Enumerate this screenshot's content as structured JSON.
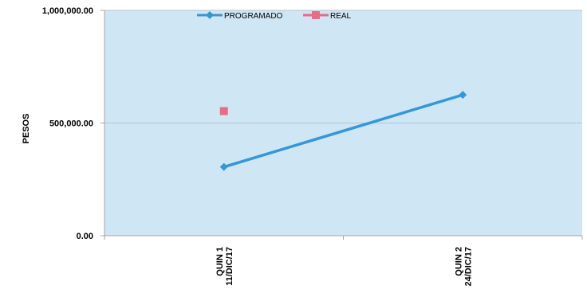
{
  "chart_data": {
    "type": "line",
    "categories": [
      [
        "QUIN 1",
        "11/DIC/17"
      ],
      [
        "QUIN 2",
        "24/DIC/17"
      ]
    ],
    "series": [
      {
        "name": "PROGRAMADO",
        "type": "line",
        "marker": "diamond",
        "color": "#3398d8",
        "values": [
          305000,
          625000
        ]
      },
      {
        "name": "REAL",
        "type": "marker-only",
        "marker": "square",
        "color": "#e96b86",
        "values": [
          553000,
          null
        ]
      }
    ],
    "ylabel": "PESOS",
    "ylim": [
      0,
      1000000
    ],
    "yticks": [
      {
        "value": 0,
        "label": "0.00"
      },
      {
        "value": 500000,
        "label": "500,000.00"
      },
      {
        "value": 1000000,
        "label": "1,000,000.00"
      }
    ],
    "grid": true,
    "legend_position": "top",
    "colors": {
      "plot_bg": "#cfe6f5",
      "grid": "#b8c3cc",
      "axis": "#a6a6a6"
    }
  }
}
